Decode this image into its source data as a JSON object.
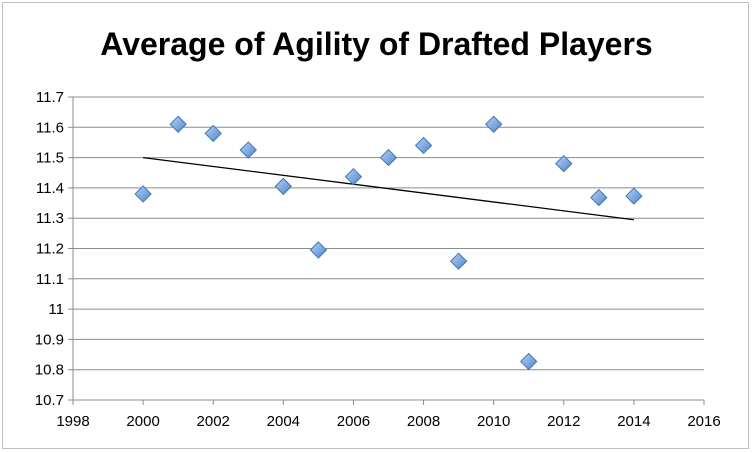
{
  "chart_data": {
    "type": "scatter",
    "title": "Average of Agility of Drafted Players",
    "xlabel": "",
    "ylabel": "",
    "xlim": [
      1998,
      2016
    ],
    "ylim": [
      10.7,
      11.7
    ],
    "x_ticks": [
      "1998",
      "2000",
      "2002",
      "2004",
      "2006",
      "2008",
      "2010",
      "2012",
      "2014",
      "2016"
    ],
    "y_ticks": [
      "11.7",
      "11.6",
      "11.5",
      "11.4",
      "11.3",
      "11.2",
      "11.1",
      "11",
      "10.9",
      "10.8",
      "10.7"
    ],
    "grid": "horizontal",
    "marker_color": "#7da7de",
    "series": [
      {
        "points": [
          [
            2000,
            11.38
          ],
          [
            2001,
            11.61
          ],
          [
            2002,
            11.58
          ],
          [
            2003,
            11.525
          ],
          [
            2004,
            11.405
          ],
          [
            2005,
            11.195
          ],
          [
            2006,
            11.437
          ],
          [
            2007,
            11.5
          ],
          [
            2008,
            11.54
          ],
          [
            2009,
            11.158
          ],
          [
            2010,
            11.61
          ],
          [
            2011,
            10.827
          ],
          [
            2012,
            11.48
          ],
          [
            2013,
            11.368
          ],
          [
            2014,
            11.373
          ]
        ]
      }
    ],
    "trendline": {
      "type": "linear",
      "x": [
        2000,
        2014
      ],
      "y": [
        11.5,
        11.295
      ]
    }
  }
}
